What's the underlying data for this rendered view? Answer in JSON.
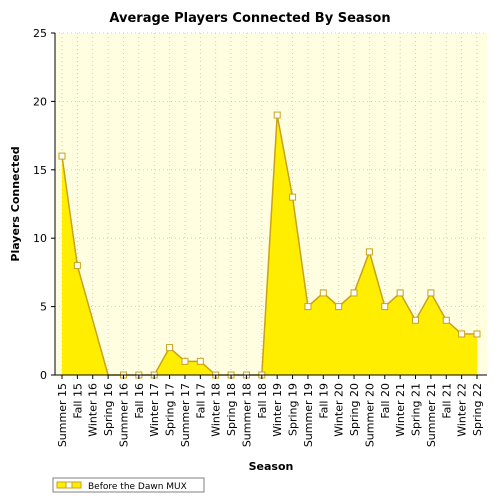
{
  "chart_data": {
    "type": "area",
    "title": "Average Players Connected By Season",
    "xlabel": "Season",
    "ylabel": "Players Connected",
    "ylim": [
      0,
      25
    ],
    "yticks": [
      0,
      5,
      10,
      15,
      20,
      25
    ],
    "grid": true,
    "legend_position": "bottom-left",
    "categories": [
      "Summer 15",
      "Fall 15",
      "Winter 16",
      "Spring 16",
      "Summer 16",
      "Fall 16",
      "Winter 17",
      "Spring 17",
      "Summer 17",
      "Fall 17",
      "Winter 18",
      "Spring 18",
      "Summer 18",
      "Fall 18",
      "Winter 19",
      "Spring 19",
      "Summer 19",
      "Fall 19",
      "Winter 20",
      "Spring 20",
      "Summer 20",
      "Fall 20",
      "Winter 21",
      "Spring 21",
      "Summer 21",
      "Fall 21",
      "Winter 22",
      "Spring 22"
    ],
    "series": [
      {
        "name": "Before the Dawn MUX",
        "values": [
          16,
          8,
          4,
          0,
          0,
          0,
          0,
          2,
          1,
          1,
          0,
          0,
          0,
          0,
          19,
          13,
          5,
          6,
          5,
          6,
          9,
          5,
          6,
          4,
          6,
          4,
          3,
          3
        ],
        "marked": [
          true,
          true,
          false,
          false,
          true,
          true,
          true,
          true,
          true,
          true,
          true,
          true,
          true,
          true,
          true,
          true,
          true,
          true,
          true,
          true,
          true,
          true,
          true,
          true,
          true,
          true,
          true,
          true
        ]
      }
    ],
    "colors": {
      "fill": "#ffee00",
      "line": "#c9a21a",
      "plot_background": "#fffee0",
      "grid": "#c8c8a0",
      "marker_fill": "#ffffff"
    }
  }
}
